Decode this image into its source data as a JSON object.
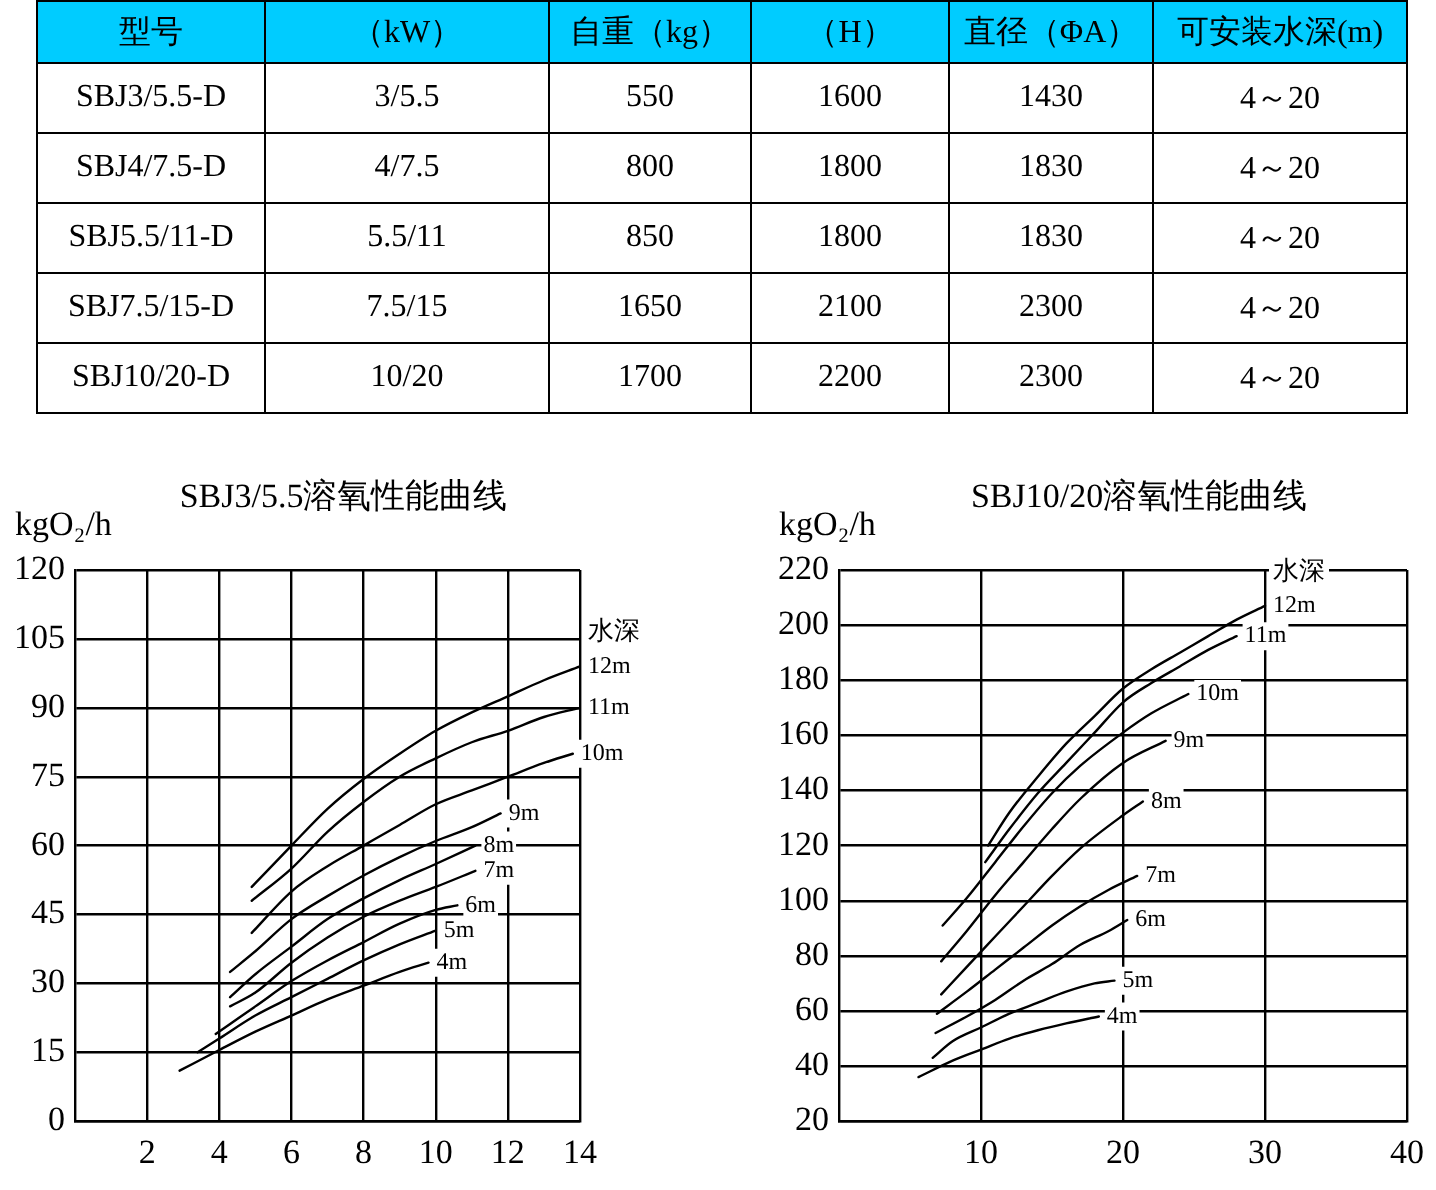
{
  "chart_data": [
    {
      "type": "other",
      "ylabel": "型号",
      "categories": [
        "SBJ3/5.5-D",
        "SBJ4/7.5-D",
        "SBJ5.5/11-D",
        "SBJ7.5/15-D",
        "SBJ10/20-D"
      ],
      "data_labels": true,
      "series": [
        {
          "name": "（kW）",
          "values": [
            null,
            null,
            null,
            null,
            null
          ],
          "value_labels": [
            "3/5.5",
            "4/7.5",
            "5.5/11",
            "7.5/15",
            "10/20"
          ]
        },
        {
          "name": "自重（kg）",
          "values": [
            550,
            800,
            850,
            1650,
            1700
          ]
        },
        {
          "name": "（H）",
          "values": [
            1600,
            1800,
            1800,
            2100,
            2200
          ]
        },
        {
          "name": "直径（ΦA）",
          "values": [
            1430,
            1830,
            1830,
            2300,
            2300
          ]
        },
        {
          "name": "可安装水深(m)",
          "values": [
            null,
            null,
            null,
            null,
            null
          ],
          "value_labels": [
            "4～20",
            "4～20",
            "4～20",
            "4～20",
            "4～20"
          ]
        }
      ]
    },
    {
      "type": "line",
      "title": "SBJ3/5.5溶氧性能曲线",
      "ylabel": "kgO₂/h",
      "xlim": [
        0,
        14
      ],
      "xticks": [
        2,
        4,
        6,
        8,
        10,
        12,
        14
      ],
      "ylim": [
        0,
        120
      ],
      "yticks": [
        0,
        15,
        30,
        45,
        60,
        75,
        90,
        105,
        120
      ],
      "grid": true,
      "annotations": [
        "水深"
      ],
      "series": [
        {
          "name": "12m",
          "color": "#000000",
          "x": [
            4.9,
            6,
            7,
            8,
            9,
            10,
            11,
            12,
            13,
            14
          ],
          "values": [
            51,
            60,
            68,
            74.5,
            80,
            85,
            89,
            92.5,
            96,
            99
          ]
        },
        {
          "name": "11m",
          "color": "#000000",
          "x": [
            4.9,
            6,
            7,
            8,
            9,
            10,
            11,
            12,
            13,
            14
          ],
          "values": [
            48,
            55,
            63,
            69.5,
            75,
            79,
            82.5,
            85,
            88,
            90
          ]
        },
        {
          "name": "10m",
          "color": "#000000",
          "x": [
            4.9,
            6,
            7,
            8,
            9,
            10,
            11,
            12,
            13,
            13.8
          ],
          "values": [
            41,
            50,
            55.5,
            60,
            64.5,
            69,
            72,
            75,
            78,
            80
          ]
        },
        {
          "name": "9m",
          "color": "#000000",
          "x": [
            4.3,
            5,
            6,
            7,
            8,
            9,
            10,
            11,
            11.8
          ],
          "values": [
            32.5,
            37,
            44,
            49,
            53.5,
            57.5,
            61,
            64,
            67
          ]
        },
        {
          "name": "8m",
          "color": "#000000",
          "x": [
            4.3,
            5,
            6,
            7,
            8,
            9,
            10,
            11.1
          ],
          "values": [
            27,
            32,
            38,
            44,
            48.5,
            52.5,
            56,
            60
          ]
        },
        {
          "name": "7m",
          "color": "#000000",
          "x": [
            4.3,
            5,
            6,
            7,
            8,
            9,
            10,
            11.1
          ],
          "values": [
            25,
            28,
            34.5,
            40,
            44.5,
            48,
            51,
            54.5
          ]
        },
        {
          "name": "6m",
          "color": "#000000",
          "x": [
            3.9,
            5,
            6,
            7,
            8,
            9,
            10,
            10.6
          ],
          "values": [
            19,
            25,
            30.5,
            35,
            39,
            43,
            46,
            47
          ]
        },
        {
          "name": "5m",
          "color": "#000000",
          "x": [
            3.4,
            4,
            5,
            6,
            7,
            8,
            9,
            10
          ],
          "values": [
            15,
            18,
            23,
            27,
            31,
            35,
            38.5,
            41.5
          ]
        },
        {
          "name": "4m",
          "color": "#000000",
          "x": [
            2.9,
            4,
            5,
            6,
            7,
            8,
            9,
            9.8
          ],
          "values": [
            11,
            15.5,
            19.5,
            23,
            26.5,
            29.5,
            32.5,
            34.5
          ]
        }
      ]
    },
    {
      "type": "line",
      "title": "SBJ10/20溶氧性能曲线",
      "ylabel": "kgO₂/h",
      "xlim": [
        0,
        40
      ],
      "xticks": [
        10,
        20,
        30,
        40
      ],
      "ylim": [
        20,
        220
      ],
      "yticks": [
        20,
        40,
        60,
        80,
        100,
        120,
        140,
        160,
        180,
        200,
        220
      ],
      "grid": true,
      "annotations": [
        "水深"
      ],
      "series": [
        {
          "name": "12m",
          "color": "#000000",
          "x": [
            10.5,
            12,
            14,
            16,
            18,
            20,
            22,
            24,
            26,
            28,
            30
          ],
          "values": [
            120,
            132,
            145,
            157,
            167,
            177,
            184,
            190,
            196,
            202,
            207
          ]
        },
        {
          "name": "11m",
          "color": "#000000",
          "x": [
            10.3,
            12,
            14,
            16,
            18,
            20,
            22,
            24,
            26,
            28
          ],
          "values": [
            114,
            126,
            139,
            150,
            161,
            172,
            179,
            185,
            191,
            196
          ]
        },
        {
          "name": "10m",
          "color": "#000000",
          "x": [
            7.3,
            9,
            11,
            13,
            15,
            17,
            20,
            22,
            24.6
          ],
          "values": [
            91,
            101,
            114,
            127,
            139,
            149,
            161,
            168,
            175
          ]
        },
        {
          "name": "9m",
          "color": "#000000",
          "x": [
            7.2,
            9,
            11,
            13,
            15,
            17,
            20,
            23
          ],
          "values": [
            78,
            89,
            102,
            114,
            126,
            137,
            150,
            158
          ]
        },
        {
          "name": "8m",
          "color": "#000000",
          "x": [
            7.2,
            9,
            11,
            13,
            15,
            17,
            20,
            21.4
          ],
          "values": [
            66,
            76,
            87,
            98,
            109,
            119,
            131,
            136
          ]
        },
        {
          "name": "7m",
          "color": "#000000",
          "x": [
            6.9,
            9,
            11,
            13,
            15,
            17,
            19,
            21
          ],
          "values": [
            59,
            67,
            75,
            83,
            91,
            98,
            104,
            109
          ]
        },
        {
          "name": "6m",
          "color": "#000000",
          "x": [
            6.8,
            9,
            11,
            13,
            15,
            17,
            19,
            20.3
          ],
          "values": [
            52,
            58,
            64,
            71,
            77,
            84,
            89,
            93
          ]
        },
        {
          "name": "5m",
          "color": "#000000",
          "x": [
            6.6,
            8,
            10,
            12,
            14,
            16,
            18,
            19.4
          ],
          "values": [
            43,
            49,
            54,
            59,
            63,
            67,
            70,
            71
          ]
        },
        {
          "name": "4m",
          "color": "#000000",
          "x": [
            5.6,
            8,
            10,
            12,
            14,
            16,
            18.3
          ],
          "values": [
            36,
            42,
            46,
            50,
            53,
            55.5,
            58
          ]
        }
      ]
    }
  ]
}
